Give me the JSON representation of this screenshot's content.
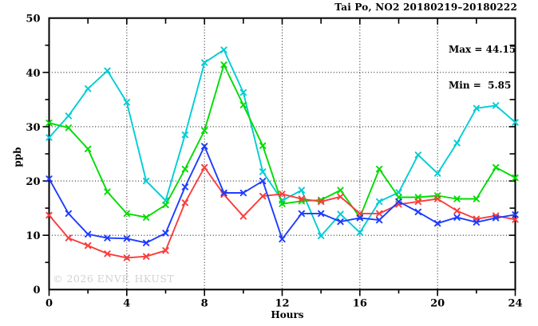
{
  "title": "Tai Po, NO2 20180219–20180222",
  "annotations": {
    "max_label": "Max = 44.15",
    "min_label": "Min =  5.85"
  },
  "watermark": "© 2026 ENVF, HKUST",
  "chart_data": {
    "type": "line",
    "title": "Tai Po, NO2 20180219–20180222",
    "xlabel": "Hours",
    "ylabel": "ppb",
    "xlim": [
      0,
      24
    ],
    "ylim": [
      0,
      50
    ],
    "x_major_ticks": [
      0,
      4,
      8,
      12,
      16,
      20,
      24
    ],
    "x_minor_ticks": [
      2,
      6,
      10,
      14,
      18,
      22
    ],
    "y_major_ticks": [
      0,
      10,
      20,
      30,
      40,
      50
    ],
    "y_minor_ticks": [
      5,
      15,
      25,
      35,
      45
    ],
    "grid": "dotted lines at major ticks (10,20,30,40 and 4,8,12,16,20)",
    "legend_position": "none",
    "max_value": 44.15,
    "min_value": 5.85,
    "x": [
      0,
      1,
      2,
      3,
      4,
      5,
      6,
      7,
      8,
      9,
      10,
      11,
      12,
      13,
      14,
      15,
      16,
      17,
      18,
      19,
      20,
      21,
      22,
      23,
      24
    ],
    "series": [
      {
        "name": "series-cyan",
        "color": "#00cdd4",
        "values": [
          28.0,
          32.0,
          37.0,
          40.3,
          34.5,
          20.0,
          16.4,
          28.5,
          41.8,
          44.15,
          36.3,
          21.7,
          16.4,
          18.3,
          9.9,
          13.9,
          10.5,
          16.2,
          17.9,
          24.8,
          21.4,
          27.0,
          33.4,
          33.9,
          30.8
        ]
      },
      {
        "name": "series-green",
        "color": "#00dc00",
        "values": [
          30.7,
          29.8,
          25.9,
          18.0,
          14.0,
          13.3,
          15.6,
          22.2,
          29.3,
          41.4,
          34.0,
          26.5,
          15.8,
          16.3,
          16.5,
          18.3,
          13.3,
          22.2,
          17.0,
          17.0,
          17.3,
          16.7,
          16.7,
          22.5,
          20.6
        ]
      },
      {
        "name": "series-red",
        "color": "#fa3c3c",
        "values": [
          13.7,
          9.5,
          8.1,
          6.6,
          5.85,
          6.1,
          7.2,
          16.0,
          22.5,
          17.5,
          13.5,
          17.2,
          17.6,
          16.7,
          16.2,
          17.1,
          14.0,
          14.0,
          15.7,
          16.2,
          16.7,
          14.5,
          13.0,
          13.6,
          12.9
        ]
      },
      {
        "name": "series-blue",
        "color": "#1e3cff",
        "values": [
          20.4,
          14.0,
          10.2,
          9.5,
          9.4,
          8.6,
          10.4,
          18.9,
          26.4,
          17.8,
          17.8,
          20.0,
          9.3,
          14.0,
          14.0,
          12.5,
          13.2,
          12.8,
          16.2,
          14.3,
          12.2,
          13.3,
          12.4,
          13.2,
          13.8
        ]
      }
    ]
  }
}
